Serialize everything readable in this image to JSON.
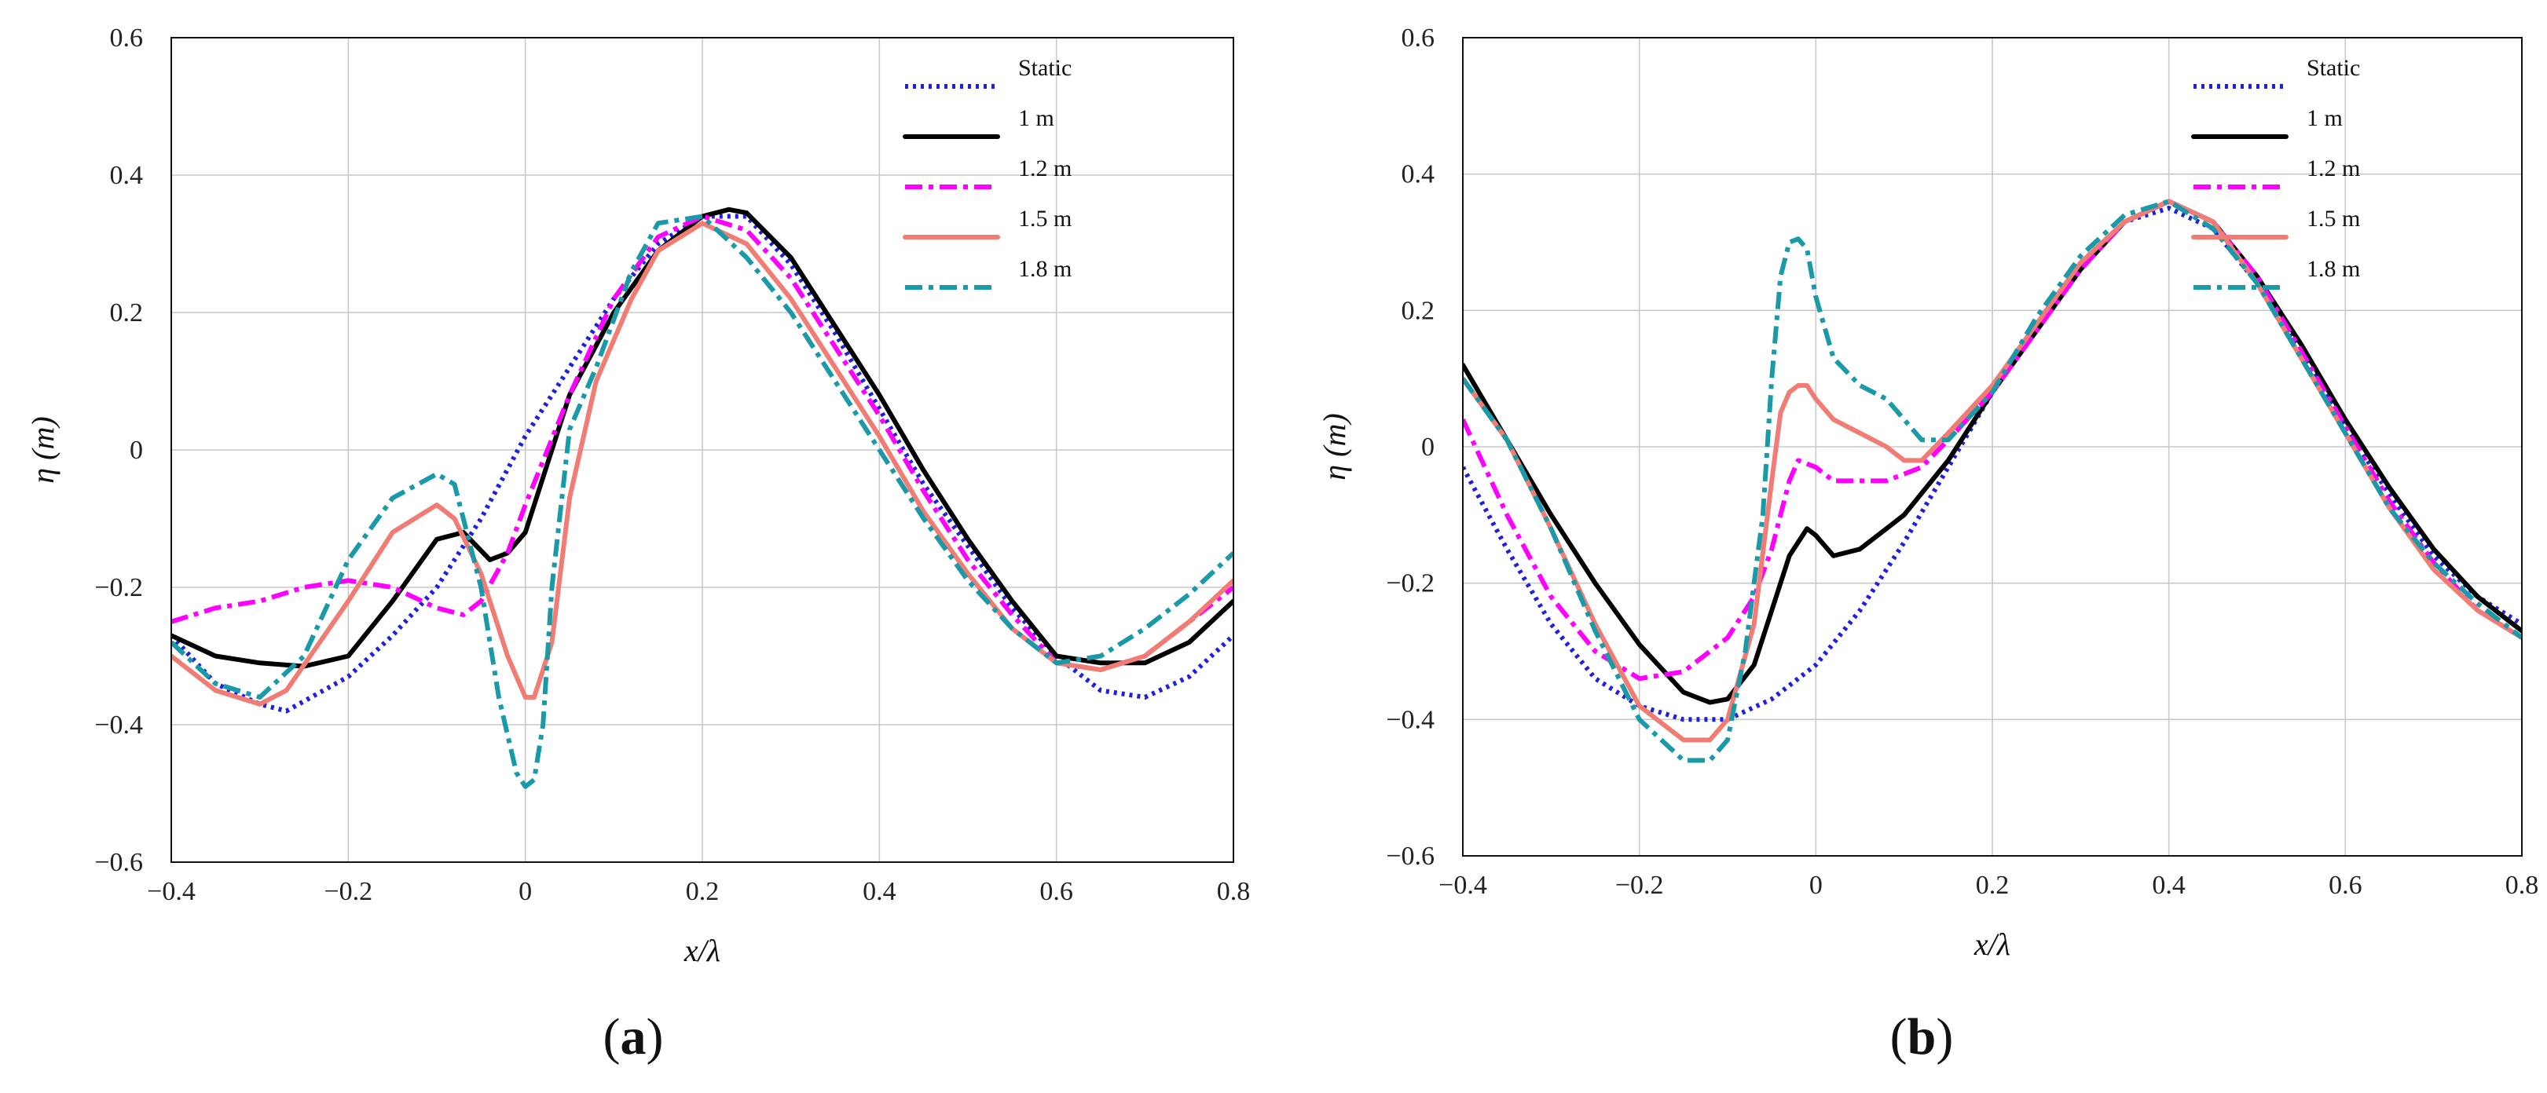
{
  "chart_data": [
    {
      "type": "line",
      "panel_label": "a",
      "xlabel": "x/λ",
      "ylabel": "η (m)",
      "xlim": [
        -0.4,
        0.8
      ],
      "ylim": [
        -0.6,
        0.6
      ],
      "xticks": [
        -0.4,
        -0.2,
        0,
        0.2,
        0.4,
        0.6,
        0.8
      ],
      "yticks": [
        -0.6,
        -0.4,
        -0.2,
        0,
        0.2,
        0.4,
        0.6
      ],
      "xtick_labels": [
        "−0.4",
        "−0.2",
        "0",
        "0.2",
        "0.4",
        "0.6",
        "0.8"
      ],
      "ytick_labels": [
        "−0.6",
        "−0.4",
        "−0.2",
        "0",
        "0.2",
        "0.4",
        "0.6"
      ],
      "grid": true,
      "legend_position": "top-right",
      "series": [
        {
          "name": "Static",
          "color": "#1f1fe0",
          "style": "dotted",
          "x": [
            -0.4,
            -0.35,
            -0.3,
            -0.27,
            -0.2,
            -0.15,
            -0.1,
            -0.05,
            0,
            0.05,
            0.1,
            0.15,
            0.2,
            0.25,
            0.3,
            0.35,
            0.4,
            0.45,
            0.5,
            0.55,
            0.6,
            0.65,
            0.7,
            0.75,
            0.8
          ],
          "y": [
            -0.27,
            -0.34,
            -0.37,
            -0.38,
            -0.33,
            -0.27,
            -0.2,
            -0.1,
            0.02,
            0.12,
            0.22,
            0.3,
            0.34,
            0.34,
            0.27,
            0.17,
            0.06,
            -0.05,
            -0.14,
            -0.23,
            -0.3,
            -0.35,
            -0.36,
            -0.33,
            -0.27
          ]
        },
        {
          "name": "1 m",
          "color": "#000000",
          "style": "solid",
          "x": [
            -0.4,
            -0.35,
            -0.3,
            -0.25,
            -0.2,
            -0.15,
            -0.1,
            -0.07,
            -0.04,
            -0.02,
            0,
            0.05,
            0.1,
            0.15,
            0.2,
            0.23,
            0.25,
            0.3,
            0.35,
            0.4,
            0.45,
            0.5,
            0.55,
            0.6,
            0.65,
            0.7,
            0.75,
            0.8
          ],
          "y": [
            -0.27,
            -0.3,
            -0.31,
            -0.315,
            -0.3,
            -0.22,
            -0.13,
            -0.12,
            -0.16,
            -0.15,
            -0.12,
            0.08,
            0.2,
            0.29,
            0.34,
            0.35,
            0.345,
            0.28,
            0.18,
            0.08,
            -0.03,
            -0.13,
            -0.22,
            -0.3,
            -0.31,
            -0.31,
            -0.28,
            -0.22
          ]
        },
        {
          "name": "1.2 m",
          "color": "#ff00ff",
          "style": "dashdot",
          "x": [
            -0.4,
            -0.35,
            -0.3,
            -0.25,
            -0.2,
            -0.15,
            -0.1,
            -0.07,
            -0.05,
            -0.02,
            0,
            0.05,
            0.1,
            0.15,
            0.2,
            0.25,
            0.3,
            0.35,
            0.4,
            0.45,
            0.5,
            0.55,
            0.6,
            0.65,
            0.7,
            0.75,
            0.8
          ],
          "y": [
            -0.25,
            -0.23,
            -0.22,
            -0.2,
            -0.19,
            -0.2,
            -0.23,
            -0.24,
            -0.22,
            -0.15,
            -0.08,
            0.08,
            0.22,
            0.31,
            0.34,
            0.32,
            0.25,
            0.15,
            0.05,
            -0.06,
            -0.16,
            -0.24,
            -0.31,
            -0.32,
            -0.3,
            -0.25,
            -0.2
          ]
        },
        {
          "name": "1.5 m",
          "color": "#f07c74",
          "style": "solid",
          "x": [
            -0.4,
            -0.35,
            -0.3,
            -0.27,
            -0.2,
            -0.15,
            -0.1,
            -0.08,
            -0.05,
            -0.02,
            0,
            0.01,
            0.03,
            0.05,
            0.08,
            0.12,
            0.15,
            0.2,
            0.25,
            0.3,
            0.35,
            0.4,
            0.45,
            0.5,
            0.55,
            0.6,
            0.65,
            0.7,
            0.75,
            0.8
          ],
          "y": [
            -0.3,
            -0.35,
            -0.37,
            -0.35,
            -0.22,
            -0.12,
            -0.08,
            -0.1,
            -0.18,
            -0.3,
            -0.36,
            -0.36,
            -0.28,
            -0.07,
            0.1,
            0.22,
            0.29,
            0.33,
            0.3,
            0.22,
            0.12,
            0.02,
            -0.09,
            -0.18,
            -0.26,
            -0.31,
            -0.32,
            -0.3,
            -0.25,
            -0.19
          ]
        },
        {
          "name": "1.8 m",
          "color": "#1a9aa8",
          "style": "dashdot",
          "x": [
            -0.4,
            -0.35,
            -0.3,
            -0.25,
            -0.2,
            -0.15,
            -0.1,
            -0.08,
            -0.05,
            -0.03,
            -0.01,
            0,
            0.01,
            0.02,
            0.03,
            0.05,
            0.08,
            0.12,
            0.15,
            0.2,
            0.25,
            0.3,
            0.35,
            0.4,
            0.45,
            0.5,
            0.55,
            0.6,
            0.65,
            0.7,
            0.75,
            0.8
          ],
          "y": [
            -0.28,
            -0.34,
            -0.36,
            -0.3,
            -0.16,
            -0.07,
            -0.035,
            -0.05,
            -0.2,
            -0.36,
            -0.47,
            -0.49,
            -0.48,
            -0.4,
            -0.2,
            0.03,
            0.12,
            0.26,
            0.33,
            0.34,
            0.28,
            0.2,
            0.1,
            0.0,
            -0.1,
            -0.19,
            -0.26,
            -0.31,
            -0.3,
            -0.26,
            -0.21,
            -0.15
          ]
        }
      ]
    },
    {
      "type": "line",
      "panel_label": "b",
      "xlabel": "x/λ",
      "ylabel": "η (m)",
      "xlim": [
        -0.4,
        0.8
      ],
      "ylim": [
        -0.6,
        0.6
      ],
      "xticks": [
        -0.4,
        -0.2,
        0,
        0.2,
        0.4,
        0.6,
        0.8
      ],
      "yticks": [
        -0.6,
        -0.4,
        -0.2,
        0,
        0.2,
        0.4,
        0.6
      ],
      "xtick_labels": [
        "−0.4",
        "−0.2",
        "0",
        "0.2",
        "0.4",
        "0.6",
        "0.8"
      ],
      "ytick_labels": [
        "−0.6",
        "−0.4",
        "−0.2",
        "0",
        "0.2",
        "0.4",
        "0.6"
      ],
      "grid": true,
      "legend_position": "top-right",
      "series": [
        {
          "name": "Static",
          "color": "#1f1fe0",
          "style": "dotted",
          "x": [
            -0.4,
            -0.35,
            -0.3,
            -0.25,
            -0.2,
            -0.15,
            -0.1,
            -0.05,
            0,
            0.05,
            0.1,
            0.15,
            0.2,
            0.25,
            0.3,
            0.35,
            0.4,
            0.45,
            0.5,
            0.55,
            0.6,
            0.65,
            0.7,
            0.75,
            0.8
          ],
          "y": [
            -0.03,
            -0.15,
            -0.26,
            -0.34,
            -0.38,
            -0.4,
            -0.4,
            -0.37,
            -0.32,
            -0.24,
            -0.14,
            -0.03,
            0.08,
            0.18,
            0.27,
            0.33,
            0.35,
            0.32,
            0.24,
            0.14,
            0.03,
            -0.07,
            -0.16,
            -0.22,
            -0.26
          ]
        },
        {
          "name": "1 m",
          "color": "#000000",
          "style": "solid",
          "x": [
            -0.4,
            -0.35,
            -0.3,
            -0.25,
            -0.2,
            -0.15,
            -0.12,
            -0.1,
            -0.07,
            -0.05,
            -0.03,
            -0.01,
            0,
            0.02,
            0.05,
            0.08,
            0.1,
            0.15,
            0.2,
            0.25,
            0.3,
            0.35,
            0.4,
            0.45,
            0.5,
            0.55,
            0.6,
            0.65,
            0.7,
            0.75,
            0.8
          ],
          "y": [
            0.12,
            0.01,
            -0.1,
            -0.2,
            -0.29,
            -0.36,
            -0.375,
            -0.37,
            -0.32,
            -0.24,
            -0.16,
            -0.12,
            -0.13,
            -0.16,
            -0.15,
            -0.12,
            -0.1,
            -0.02,
            0.08,
            0.17,
            0.26,
            0.33,
            0.36,
            0.33,
            0.25,
            0.15,
            0.04,
            -0.06,
            -0.15,
            -0.22,
            -0.27
          ]
        },
        {
          "name": "1.2 m",
          "color": "#ff00ff",
          "style": "dashdot",
          "x": [
            -0.4,
            -0.35,
            -0.3,
            -0.25,
            -0.2,
            -0.15,
            -0.1,
            -0.07,
            -0.05,
            -0.03,
            -0.02,
            0,
            0.02,
            0.05,
            0.08,
            0.1,
            0.12,
            0.15,
            0.2,
            0.25,
            0.3,
            0.35,
            0.4,
            0.45,
            0.5,
            0.55,
            0.6,
            0.65,
            0.7,
            0.75,
            0.8
          ],
          "y": [
            0.04,
            -0.1,
            -0.22,
            -0.3,
            -0.34,
            -0.33,
            -0.28,
            -0.22,
            -0.15,
            -0.05,
            -0.02,
            -0.03,
            -0.05,
            -0.05,
            -0.05,
            -0.04,
            -0.03,
            0.01,
            0.08,
            0.17,
            0.26,
            0.33,
            0.36,
            0.33,
            0.25,
            0.14,
            0.03,
            -0.08,
            -0.17,
            -0.24,
            -0.28
          ]
        },
        {
          "name": "1.5 m",
          "color": "#f07c74",
          "style": "solid",
          "x": [
            -0.4,
            -0.35,
            -0.3,
            -0.25,
            -0.2,
            -0.15,
            -0.12,
            -0.1,
            -0.07,
            -0.05,
            -0.04,
            -0.03,
            -0.02,
            -0.01,
            0,
            0.02,
            0.05,
            0.08,
            0.1,
            0.12,
            0.15,
            0.2,
            0.25,
            0.3,
            0.35,
            0.4,
            0.45,
            0.5,
            0.55,
            0.6,
            0.65,
            0.7,
            0.75,
            0.8
          ],
          "y": [
            0.1,
            0.01,
            -0.12,
            -0.26,
            -0.38,
            -0.43,
            -0.43,
            -0.4,
            -0.26,
            -0.05,
            0.05,
            0.08,
            0.09,
            0.09,
            0.07,
            0.04,
            0.02,
            0.0,
            -0.02,
            -0.02,
            0.02,
            0.09,
            0.18,
            0.27,
            0.33,
            0.36,
            0.33,
            0.24,
            0.13,
            0.02,
            -0.09,
            -0.18,
            -0.24,
            -0.28
          ]
        },
        {
          "name": "1.8 m",
          "color": "#1a9aa8",
          "style": "dashdot",
          "x": [
            -0.4,
            -0.35,
            -0.3,
            -0.25,
            -0.2,
            -0.15,
            -0.12,
            -0.1,
            -0.08,
            -0.06,
            -0.05,
            -0.04,
            -0.03,
            -0.02,
            -0.01,
            0,
            0.02,
            0.05,
            0.08,
            0.1,
            0.12,
            0.15,
            0.2,
            0.25,
            0.3,
            0.35,
            0.4,
            0.45,
            0.5,
            0.55,
            0.6,
            0.65,
            0.7,
            0.75,
            0.8
          ],
          "y": [
            0.1,
            0.01,
            -0.12,
            -0.27,
            -0.4,
            -0.46,
            -0.46,
            -0.43,
            -0.3,
            -0.1,
            0.1,
            0.25,
            0.3,
            0.305,
            0.29,
            0.22,
            0.13,
            0.09,
            0.07,
            0.04,
            0.01,
            0.01,
            0.08,
            0.19,
            0.28,
            0.34,
            0.36,
            0.32,
            0.24,
            0.13,
            0.02,
            -0.09,
            -0.17,
            -0.23,
            -0.28
          ]
        }
      ]
    }
  ]
}
